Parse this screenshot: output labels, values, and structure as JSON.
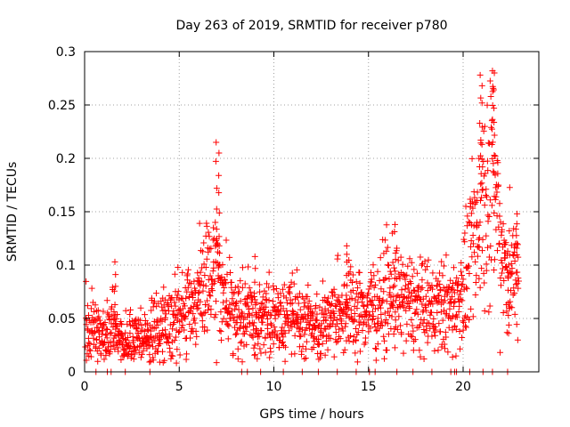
{
  "chart_data": {
    "type": "scatter",
    "title": "Day 263 of 2019, SRMTID for receiver p780",
    "xlabel": "GPS time / hours",
    "ylabel": "SRMTID / TECUs",
    "xlim": [
      0,
      24
    ],
    "ylim": [
      0,
      0.3
    ],
    "x_ticks": [
      0,
      5,
      10,
      15,
      20
    ],
    "x_tick_labels": [
      "0",
      "5",
      "10",
      "15",
      "20"
    ],
    "y_ticks": [
      0,
      0.05,
      0.1,
      0.15,
      0.2,
      0.25,
      0.3
    ],
    "y_tick_labels": [
      "0",
      "0.05",
      "0.1",
      "0.15",
      "0.2",
      "0.25",
      "0.3"
    ],
    "grid": true,
    "marker": "+",
    "color": "#ff0000",
    "series": [
      {
        "name": "SRMTID",
        "trend_x": [
          0.0,
          0.5,
          1.0,
          1.5,
          2.0,
          2.5,
          3.0,
          3.5,
          4.0,
          4.5,
          5.0,
          5.5,
          6.0,
          6.5,
          7.0,
          7.5,
          8.0,
          8.5,
          9.0,
          9.5,
          10.0,
          10.5,
          11.0,
          11.5,
          12.0,
          12.5,
          13.0,
          13.5,
          14.0,
          14.5,
          15.0,
          15.5,
          16.0,
          16.5,
          17.0,
          17.5,
          18.0,
          18.5,
          19.0,
          19.5,
          20.0,
          20.5,
          21.0,
          21.5,
          22.0,
          22.5,
          23.0
        ],
        "trend_y": [
          0.042,
          0.04,
          0.031,
          0.042,
          0.03,
          0.028,
          0.032,
          0.037,
          0.042,
          0.047,
          0.052,
          0.058,
          0.068,
          0.082,
          0.095,
          0.065,
          0.052,
          0.055,
          0.048,
          0.052,
          0.048,
          0.05,
          0.052,
          0.048,
          0.045,
          0.046,
          0.05,
          0.055,
          0.062,
          0.055,
          0.06,
          0.065,
          0.072,
          0.068,
          0.065,
          0.062,
          0.06,
          0.058,
          0.062,
          0.06,
          0.078,
          0.11,
          0.16,
          0.19,
          0.12,
          0.09,
          0.1
        ],
        "spikes": [
          {
            "x": 1.6,
            "y": 0.103
          },
          {
            "x": 6.95,
            "y": 0.215
          },
          {
            "x": 7.1,
            "y": 0.205
          },
          {
            "x": 9.0,
            "y": 0.108
          },
          {
            "x": 13.85,
            "y": 0.118
          },
          {
            "x": 16.4,
            "y": 0.138
          },
          {
            "x": 20.9,
            "y": 0.278
          },
          {
            "x": 21.0,
            "y": 0.268
          },
          {
            "x": 21.55,
            "y": 0.282
          },
          {
            "x": 21.65,
            "y": 0.28
          },
          {
            "x": 22.85,
            "y": 0.148
          },
          {
            "x": 22.4,
            "y": 0.036
          }
        ],
        "zero_x": [
          0.6,
          1.2,
          1.4,
          2.15,
          3.45,
          8.3,
          8.6,
          9.3,
          10.5,
          11.5,
          12.35,
          13.35,
          14.35,
          15.05,
          15.35,
          16.5,
          17.35,
          18.35,
          19.35,
          19.55,
          19.65,
          20.35,
          21.05,
          21.55,
          22.35
        ]
      }
    ]
  }
}
